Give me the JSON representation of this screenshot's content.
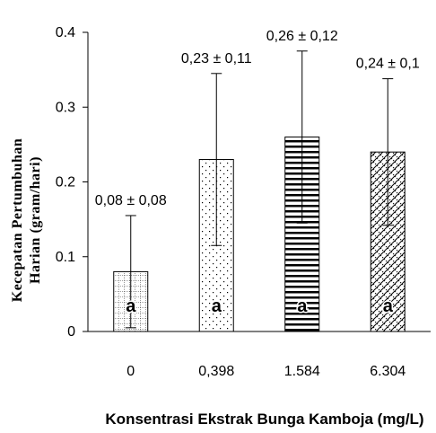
{
  "chart_data": {
    "type": "bar",
    "categories": [
      "0",
      "0,398",
      "1.584",
      "6.304"
    ],
    "values": [
      0.08,
      0.23,
      0.26,
      0.24
    ],
    "errors": [
      0.075,
      0.115,
      0.115,
      0.098
    ],
    "data_labels": [
      "0,08 ± 0,08",
      "0,23 ± 0,11",
      "0,26 ± 0,12",
      "0,24 ± 0,1"
    ],
    "letters": [
      "a",
      "a",
      "a",
      "a"
    ],
    "patterns": [
      "grid",
      "dots",
      "horizontal-lines",
      "diamond"
    ],
    "xlabel": "Konsentrasi Ekstrak Bunga Kamboja  (mg/L)",
    "ylabel_line1": "Kecepatan   Pertumbuhan",
    "ylabel_line2": "Harian  (gram/hari)",
    "ylim": [
      0,
      0.4
    ],
    "yticks": [
      "0",
      "0.1",
      "0.2",
      "0.3",
      "0.4"
    ],
    "grid": false,
    "legend": "none"
  }
}
